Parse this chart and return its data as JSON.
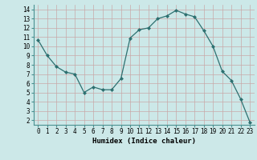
{
  "x": [
    0,
    1,
    2,
    3,
    4,
    5,
    6,
    7,
    8,
    9,
    10,
    11,
    12,
    13,
    14,
    15,
    16,
    17,
    18,
    19,
    20,
    21,
    22,
    23
  ],
  "y": [
    10.7,
    9.0,
    7.8,
    7.2,
    7.0,
    5.0,
    5.6,
    5.3,
    5.3,
    6.5,
    10.9,
    11.8,
    12.0,
    13.0,
    13.3,
    13.9,
    13.5,
    13.2,
    11.7,
    10.0,
    7.3,
    6.3,
    4.3,
    1.8
  ],
  "line_color": "#2d7070",
  "marker": "D",
  "marker_size": 2,
  "bg_color": "#cce8e8",
  "grid_color": "#c8a8a8",
  "xlabel": "Humidex (Indice chaleur)",
  "ylim": [
    1.5,
    14.5
  ],
  "xlim": [
    -0.5,
    23.5
  ],
  "yticks": [
    2,
    3,
    4,
    5,
    6,
    7,
    8,
    9,
    10,
    11,
    12,
    13,
    14
  ],
  "xticks": [
    0,
    1,
    2,
    3,
    4,
    5,
    6,
    7,
    8,
    9,
    10,
    11,
    12,
    13,
    14,
    15,
    16,
    17,
    18,
    19,
    20,
    21,
    22,
    23
  ],
  "label_fontsize": 6.5,
  "tick_fontsize": 5.5
}
